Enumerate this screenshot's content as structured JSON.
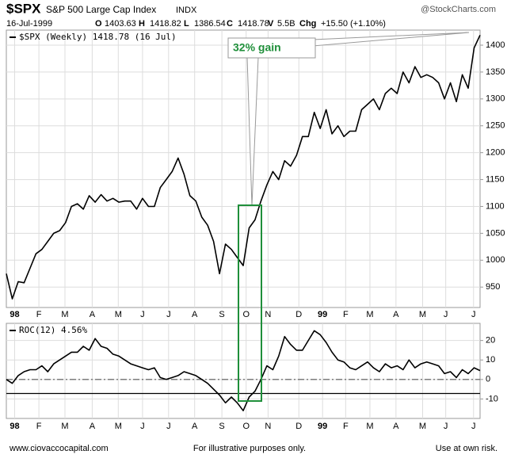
{
  "header": {
    "symbol": "$SPX",
    "name": "S&P 500 Large Cap Index",
    "exchange": "INDX",
    "source": "@StockCharts.com",
    "date": "16-Jul-1999",
    "quote": [
      {
        "label": "O",
        "value": "1403.63"
      },
      {
        "label": "H",
        "value": "1418.82"
      },
      {
        "label": "L",
        "value": "1386.54"
      },
      {
        "label": "C",
        "value": "1418.78"
      },
      {
        "label": "V",
        "value": "5.5B"
      },
      {
        "label": "Chg",
        "value": "+15.50 (+1.10%)"
      }
    ]
  },
  "footer": {
    "left": "www.ciovaccocapital.com",
    "center": "For illustrative purposes only.",
    "right": "Use at own risk."
  },
  "chart_data": [
    {
      "type": "line",
      "title": "$SPX (Weekly) 1418.78 (16 Jul)",
      "annotation": "32% gain",
      "x": [
        0,
        1,
        2,
        3,
        4,
        5,
        6,
        7,
        8,
        9,
        10,
        11,
        12,
        13,
        14,
        15,
        16,
        17,
        18,
        19,
        20,
        21,
        22,
        23,
        24,
        25,
        26,
        27,
        28,
        29,
        30,
        31,
        32,
        33,
        34,
        35,
        36,
        37,
        38,
        39,
        40,
        41,
        42,
        43,
        44,
        45,
        46,
        47,
        48,
        49,
        50,
        51,
        52,
        53,
        54,
        55,
        56,
        57,
        58,
        59,
        60,
        61,
        62,
        63,
        64,
        65,
        66,
        67,
        68,
        69,
        70,
        71,
        72,
        73,
        74,
        75,
        76,
        77,
        78,
        79,
        80
      ],
      "series": [
        {
          "name": "$SPX",
          "color": "#000000",
          "values": [
            975,
            928,
            960,
            958,
            985,
            1012,
            1020,
            1035,
            1050,
            1055,
            1070,
            1100,
            1105,
            1095,
            1120,
            1108,
            1122,
            1110,
            1115,
            1108,
            1110,
            1110,
            1095,
            1115,
            1100,
            1100,
            1135,
            1150,
            1165,
            1190,
            1160,
            1120,
            1110,
            1080,
            1065,
            1035,
            975,
            1030,
            1020,
            1005,
            990,
            1060,
            1075,
            1110,
            1140,
            1165,
            1150,
            1185,
            1175,
            1195,
            1230,
            1230,
            1275,
            1245,
            1280,
            1235,
            1250,
            1230,
            1240,
            1240,
            1280,
            1290,
            1300,
            1280,
            1310,
            1320,
            1310,
            1350,
            1330,
            1360,
            1340,
            1345,
            1340,
            1330,
            1300,
            1330,
            1295,
            1345,
            1320,
            1395,
            1418.78
          ]
        }
      ],
      "xlim": [
        0,
        80
      ],
      "ylim": [
        912,
        1428
      ],
      "xticks": [
        {
          "value": 1.4,
          "label": "98"
        },
        {
          "value": 5.5,
          "label": "F"
        },
        {
          "value": 9.9,
          "label": "M"
        },
        {
          "value": 14.5,
          "label": "A"
        },
        {
          "value": 18.9,
          "label": "M"
        },
        {
          "value": 23,
          "label": "J"
        },
        {
          "value": 27.4,
          "label": "J"
        },
        {
          "value": 31.8,
          "label": "A"
        },
        {
          "value": 36.4,
          "label": "S"
        },
        {
          "value": 40.5,
          "label": "O"
        },
        {
          "value": 44.2,
          "label": "N"
        },
        {
          "value": 49.4,
          "label": "D"
        },
        {
          "value": 53.4,
          "label": "99"
        },
        {
          "value": 57.3,
          "label": "F"
        },
        {
          "value": 61.4,
          "label": "M"
        },
        {
          "value": 65.8,
          "label": "A"
        },
        {
          "value": 70.3,
          "label": "M"
        },
        {
          "value": 74.2,
          "label": "J"
        },
        {
          "value": 78.9,
          "label": "J"
        }
      ],
      "yticks": [
        950,
        1000,
        1050,
        1100,
        1150,
        1200,
        1250,
        1300,
        1350,
        1400
      ],
      "grid": true
    },
    {
      "type": "line",
      "title": "ROC(12) 4.56%",
      "x": [
        0,
        1,
        2,
        3,
        4,
        5,
        6,
        7,
        8,
        9,
        10,
        11,
        12,
        13,
        14,
        15,
        16,
        17,
        18,
        19,
        20,
        21,
        22,
        23,
        24,
        25,
        26,
        27,
        28,
        29,
        30,
        31,
        32,
        33,
        34,
        35,
        36,
        37,
        38,
        39,
        40,
        41,
        42,
        43,
        44,
        45,
        46,
        47,
        48,
        49,
        50,
        51,
        52,
        53,
        54,
        55,
        56,
        57,
        58,
        59,
        60,
        61,
        62,
        63,
        64,
        65,
        66,
        67,
        68,
        69,
        70,
        71,
        72,
        73,
        74,
        75,
        76,
        77,
        78,
        79,
        80
      ],
      "series": [
        {
          "name": "ROC(12)",
          "color": "#000000",
          "values": [
            0,
            -2,
            2,
            4,
            5,
            5,
            7,
            4,
            8,
            10,
            12,
            14,
            14,
            17,
            15,
            21,
            17,
            16,
            13,
            12,
            10,
            8,
            7,
            6,
            5,
            6,
            1,
            0,
            1,
            2,
            4,
            3,
            2,
            0,
            -2,
            -5,
            -8,
            -12,
            -9,
            -12,
            -16,
            -9,
            -6,
            0,
            7,
            5,
            12,
            22,
            18,
            15,
            15,
            20,
            25,
            23,
            19,
            14,
            10,
            9,
            6,
            5,
            7,
            9,
            6,
            4,
            8,
            6,
            7,
            5,
            10,
            6,
            8,
            9,
            8,
            7,
            3,
            4,
            1,
            5,
            3,
            6,
            4.56
          ]
        }
      ],
      "xlim": [
        0,
        80
      ],
      "ylim": [
        -20,
        28.8
      ],
      "xticks": [
        {
          "value": 1.4,
          "label": "98"
        },
        {
          "value": 5.5,
          "label": "F"
        },
        {
          "value": 9.9,
          "label": "M"
        },
        {
          "value": 14.5,
          "label": "A"
        },
        {
          "value": 18.9,
          "label": "M"
        },
        {
          "value": 23,
          "label": "J"
        },
        {
          "value": 27.4,
          "label": "J"
        },
        {
          "value": 31.8,
          "label": "A"
        },
        {
          "value": 36.4,
          "label": "S"
        },
        {
          "value": 40.5,
          "label": "O"
        },
        {
          "value": 44.2,
          "label": "N"
        },
        {
          "value": 49.4,
          "label": "D"
        },
        {
          "value": 53.4,
          "label": "99"
        },
        {
          "value": 57.3,
          "label": "F"
        },
        {
          "value": 61.4,
          "label": "M"
        },
        {
          "value": 65.8,
          "label": "A"
        },
        {
          "value": 70.3,
          "label": "M"
        },
        {
          "value": 74.2,
          "label": "J"
        },
        {
          "value": 78.9,
          "label": "J"
        }
      ],
      "yticks": [
        -10,
        0,
        10,
        20
      ],
      "grid": true,
      "reference_lines": [
        {
          "value": 0,
          "style": "dashdot"
        },
        {
          "value": -7.2,
          "style": "solid"
        }
      ]
    }
  ]
}
